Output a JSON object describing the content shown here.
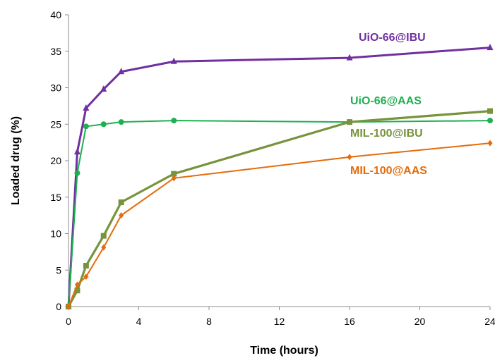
{
  "chart_data": {
    "type": "line",
    "title": "",
    "xlabel": "Time (hours)",
    "ylabel": "Loaded drug (%)",
    "xlim": [
      0,
      24
    ],
    "ylim": [
      0,
      40
    ],
    "xticks": [
      0,
      4,
      8,
      12,
      16,
      20,
      24
    ],
    "yticks": [
      0,
      5,
      10,
      15,
      20,
      25,
      30,
      35,
      40
    ],
    "grid": false,
    "legend": "inline labels next to each curve",
    "series": [
      {
        "name": "UiO-66@IBU",
        "color": "#7030A0",
        "marker": "triangle",
        "x": [
          0,
          0.5,
          1,
          2,
          3,
          6,
          16,
          24
        ],
        "y": [
          0,
          21.2,
          27.2,
          29.8,
          32.2,
          33.6,
          34.1,
          35.5
        ]
      },
      {
        "name": "UiO-66@AAS",
        "color": "#1EB050",
        "marker": "circle",
        "x": [
          0,
          0.5,
          1,
          2,
          3,
          6,
          16,
          24
        ],
        "y": [
          0,
          18.3,
          24.7,
          25.0,
          25.3,
          25.5,
          25.3,
          25.5
        ]
      },
      {
        "name": "MIL-100@IBU",
        "color": "#77933C",
        "marker": "square",
        "x": [
          0,
          0.5,
          1,
          2,
          3,
          6,
          16,
          24
        ],
        "y": [
          0,
          2.2,
          5.6,
          9.7,
          14.3,
          18.2,
          25.3,
          26.8
        ]
      },
      {
        "name": "MIL-100@AAS",
        "color": "#E46C0A",
        "marker": "diamond",
        "x": [
          0,
          0.5,
          1,
          2,
          3,
          6,
          16,
          24
        ],
        "y": [
          0,
          3.0,
          4.1,
          8.1,
          12.5,
          17.6,
          20.5,
          22.4
        ]
      }
    ]
  }
}
